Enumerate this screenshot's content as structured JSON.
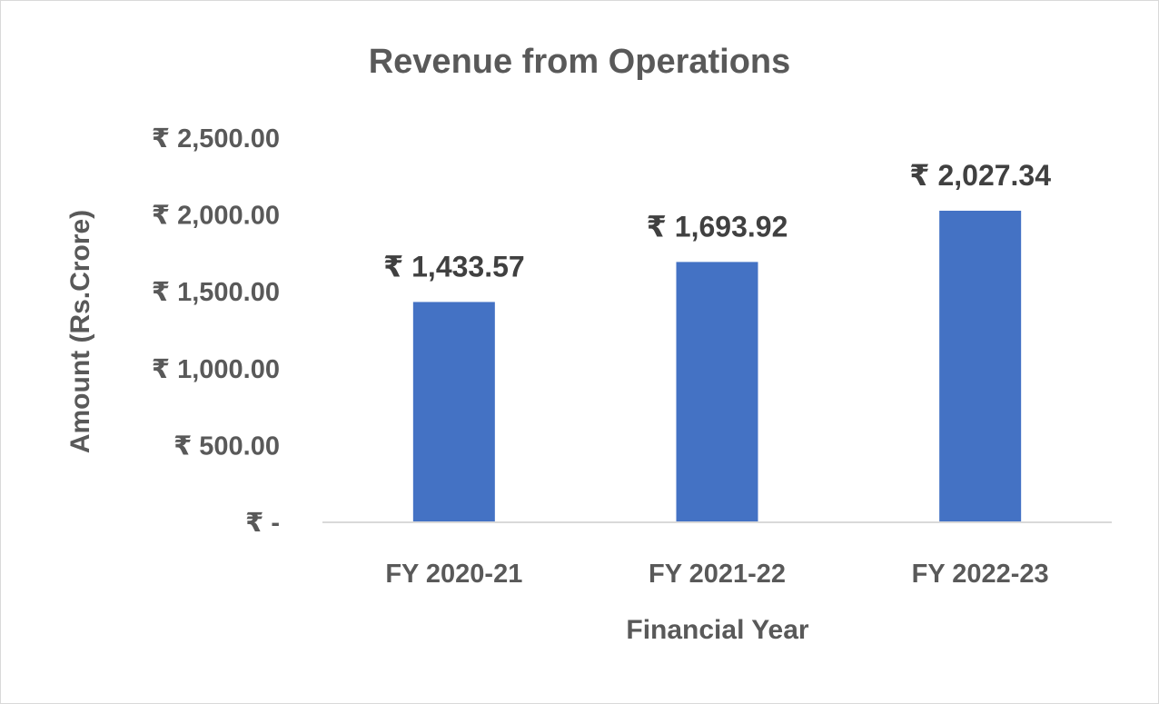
{
  "chart_data": {
    "type": "bar",
    "title": "Revenue from Operations",
    "xlabel": "Financial Year",
    "ylabel": "Amount (Rs.Crore)",
    "categories": [
      "FY 2020-21",
      "FY 2021-22",
      "FY 2022-23"
    ],
    "values": [
      1433.57,
      1693.92,
      2027.34
    ],
    "data_labels": [
      "₹ 1,433.57",
      "₹ 1,693.92",
      "₹ 2,027.34"
    ],
    "ylim": [
      0,
      2500
    ],
    "yticks": [
      0,
      500,
      1000,
      1500,
      2000,
      2500
    ],
    "ytick_labels": [
      "₹ -",
      "₹ 500.00",
      "₹ 1,000.00",
      "₹ 1,500.00",
      "₹ 2,000.00",
      "₹ 2,500.00"
    ],
    "grid": false,
    "legend": "none",
    "bar_color": "#4472C4"
  }
}
